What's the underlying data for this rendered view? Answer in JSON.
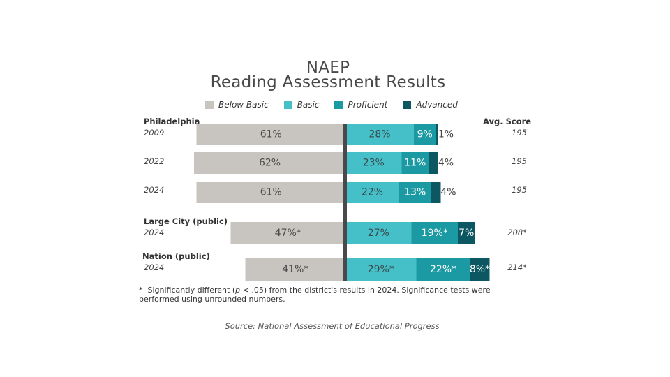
{
  "title_line1": "NAEP",
  "title_line2": "Reading Assessment Results",
  "avg_score_header": "Avg. Score",
  "footnote_star": "*",
  "footnote_pre": "Significantly different (",
  "footnote_p": "p",
  "footnote_post": " < .05) from the district's results in 2024. Significance tests were performed using unrounded numbers.",
  "source": "Source: National Assessment of Educational Progress",
  "colors": {
    "below_basic": "#c8c4bf",
    "basic": "#45c0c9",
    "proficient": "#1c9aa3",
    "advanced": "#0c5762",
    "axis": "#4a4a4a"
  },
  "chart_data": {
    "type": "bar",
    "orientation": "horizontal-diverging",
    "title": "NAEP Reading Assessment Results",
    "legend": [
      "Below Basic",
      "Basic",
      "Proficient",
      "Advanced"
    ],
    "legend_position": "top",
    "rows": [
      {
        "group": "Philadelphia",
        "year": "2009",
        "below_basic": 61,
        "basic": 28,
        "proficient": 9,
        "advanced": 1,
        "labels": [
          "61%",
          "28%",
          "9%",
          "1%"
        ],
        "avg_score": "195"
      },
      {
        "group": "",
        "year": "2022",
        "below_basic": 62,
        "basic": 23,
        "proficient": 11,
        "advanced": 4,
        "labels": [
          "62%",
          "23%",
          "11%",
          "4%"
        ],
        "avg_score": "195"
      },
      {
        "group": "",
        "year": "2024",
        "below_basic": 61,
        "basic": 22,
        "proficient": 13,
        "advanced": 4,
        "labels": [
          "61%",
          "22%",
          "13%",
          "4%"
        ],
        "avg_score": "195"
      },
      {
        "group": "Large City (public)",
        "year": "2024",
        "below_basic": 47,
        "basic": 27,
        "proficient": 19,
        "advanced": 7,
        "labels": [
          "47%*",
          "27%",
          "19%*",
          "7%"
        ],
        "avg_score": "208*"
      },
      {
        "group": "Nation (public)",
        "year": "2024",
        "below_basic": 41,
        "basic": 29,
        "proficient": 22,
        "advanced": 8,
        "labels": [
          "41%*",
          "29%*",
          "22%*",
          "8%*"
        ],
        "avg_score": "214*"
      }
    ]
  }
}
